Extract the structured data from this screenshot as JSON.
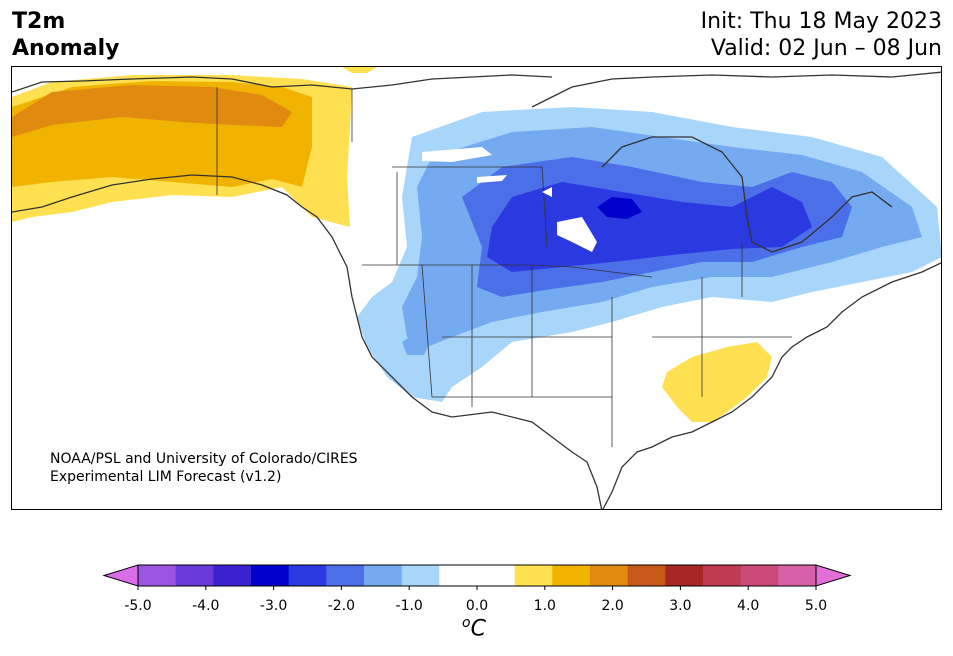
{
  "title": {
    "line1": "T2m",
    "line2": "Anomaly"
  },
  "header": {
    "init": "Init: Thu 18 May 2023",
    "valid": "Valid: 02 Jun – 08 Jun"
  },
  "credit": {
    "line1": "NOAA/PSL and University of Colorado/CIRES",
    "line2": "Experimental LIM Forecast (v1.2)"
  },
  "colorbar": {
    "ticks": [
      "-5.0",
      "-4.0",
      "-3.0",
      "-2.0",
      "-1.0",
      "0.0",
      "1.0",
      "2.0",
      "3.0",
      "4.0",
      "5.0"
    ],
    "unit_sup": "o",
    "unit": "C",
    "colors": [
      "#d96ee8",
      "#9b55e0",
      "#6a3ad8",
      "#3a22d0",
      "#0000cc",
      "#2a3ae0",
      "#4a6fe8",
      "#74aaf0",
      "#a8d6fa",
      "#ffffff",
      "#ffffff",
      "#ffe050",
      "#f0b400",
      "#e08a10",
      "#c85818",
      "#a82626",
      "#c03a52",
      "#cc4a78",
      "#d860a8",
      "#e070d8"
    ]
  },
  "map": {
    "region": "North America",
    "anomalies": [
      {
        "area": "Alaska / NW Canada",
        "sign": "warm",
        "max_level": "1.0 to 1.5"
      },
      {
        "area": "Central Canada / Hudson Bay / Upper Midwest",
        "sign": "cold",
        "max_level": "-3.5 to -3.0"
      },
      {
        "area": "Southeast US (Carolinas)",
        "sign": "warm",
        "max_level": "0.5 to 1.0"
      }
    ]
  }
}
